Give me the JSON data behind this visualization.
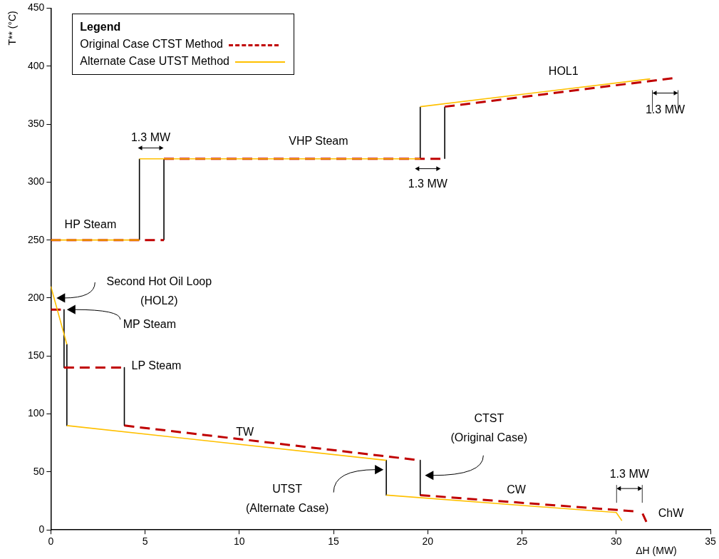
{
  "chart_data": {
    "type": "line",
    "xlabel": "ΔH (MW)",
    "ylabel": "T** (°C)",
    "legend_title": "Legend",
    "legend": "top left",
    "grid": false,
    "marker": "none",
    "xlim": [
      0,
      35
    ],
    "xticks": [
      0,
      5,
      10,
      15,
      20,
      25,
      30,
      35
    ],
    "ylim": [
      0,
      450
    ],
    "yticks": [
      0,
      50,
      100,
      150,
      200,
      250,
      300,
      350,
      400,
      450
    ],
    "series": [
      {
        "color": "#000000",
        "x": [
          4.7,
          4.7,
          null,
          6.0,
          6.0,
          null,
          19.6,
          19.6,
          null,
          20.9,
          20.9,
          null,
          0.7,
          0.7,
          null,
          0.85,
          0.85,
          null,
          3.9,
          3.9,
          null,
          17.8,
          17.8,
          null,
          19.6,
          19.6
        ],
        "values": [
          250,
          320,
          null,
          250,
          320,
          null,
          320,
          365,
          null,
          320,
          365,
          null,
          190,
          140,
          null,
          160,
          90,
          null,
          140,
          90,
          null,
          60,
          30,
          null,
          60,
          30
        ]
      },
      {
        "name": "Original Case CTST Method",
        "color": "#c00000",
        "line_style": "dashed",
        "x": [
          0,
          6.0,
          null,
          6.0,
          20.9,
          null,
          20.9,
          33.2,
          null,
          0,
          0.7,
          null,
          0.7,
          3.9,
          null,
          3.9,
          19.6,
          null,
          19.6,
          31.0,
          null,
          31.4,
          31.6
        ],
        "values": [
          250,
          250,
          null,
          320,
          320,
          null,
          365,
          390,
          null,
          190,
          190,
          null,
          140,
          140,
          null,
          90,
          60,
          null,
          30,
          16,
          null,
          14,
          7
        ]
      },
      {
        "name": "Alternate Case UTST Method",
        "color": "#ffc000",
        "line_style": "solid",
        "x": [
          0,
          4.7,
          null,
          4.7,
          19.6,
          null,
          19.6,
          31.8,
          null,
          0,
          0.85,
          null,
          0.85,
          17.8,
          null,
          17.8,
          30,
          30.3
        ],
        "values": [
          250,
          250,
          null,
          320,
          320,
          null,
          365,
          389,
          null,
          210,
          160,
          null,
          90,
          60,
          null,
          30,
          15,
          8
        ]
      }
    ],
    "annotations": [
      "HP Steam",
      "1.3 MW",
      "VHP Steam",
      "1.3 MW",
      "HOL1",
      "1.3 MW",
      "Second Hot Oil Loop\n(HOL2)",
      "MP Steam",
      "LP Steam",
      "TW",
      "CTST\n(Original Case)",
      "UTST\n(Alternate Case)",
      "CW",
      "1.3 MW",
      "ChW"
    ]
  }
}
